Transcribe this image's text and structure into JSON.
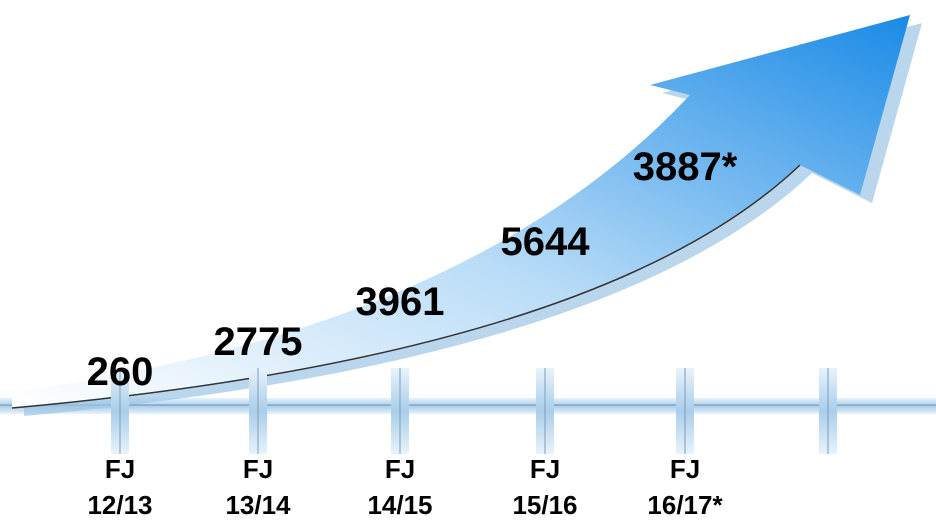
{
  "items": [
    {
      "value": "260",
      "period": {
        "line1": "FJ",
        "line2": "12/13"
      }
    },
    {
      "value": "2775",
      "period": {
        "line1": "FJ",
        "line2": "13/14"
      }
    },
    {
      "value": "3961",
      "period": {
        "line1": "FJ",
        "line2": "14/15"
      }
    },
    {
      "value": "5644",
      "period": {
        "line1": "FJ",
        "line2": "15/16"
      }
    },
    {
      "value": "3887*",
      "period": {
        "line1": "FJ",
        "line2": "16/17*"
      }
    }
  ]
}
